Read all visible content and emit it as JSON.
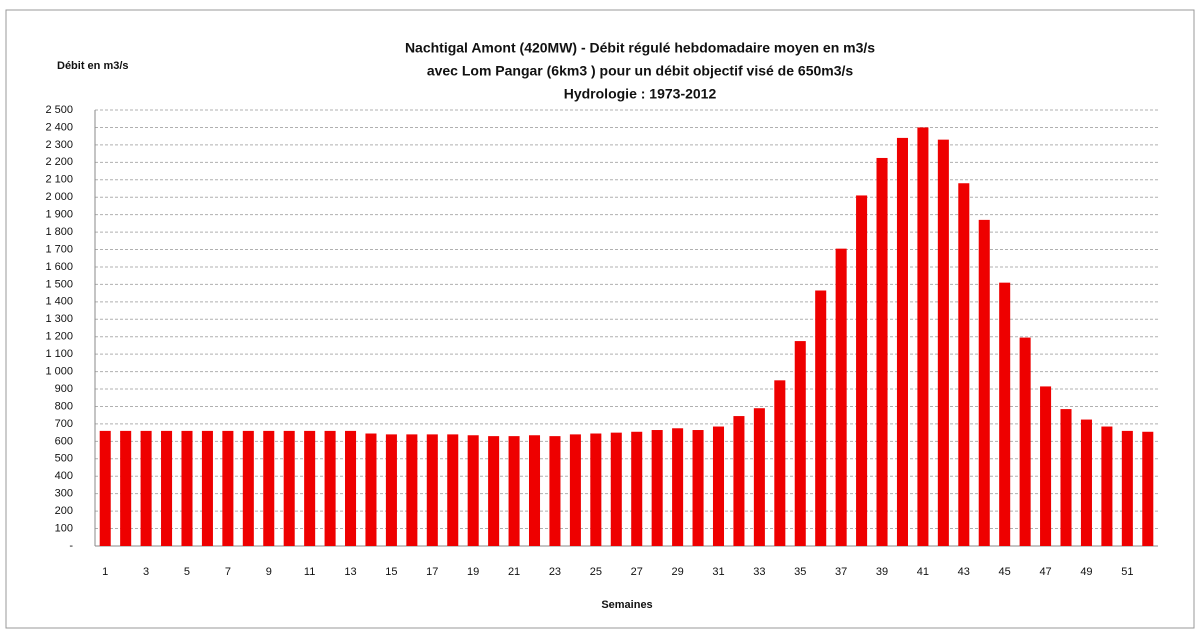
{
  "chart_data": {
    "type": "bar",
    "title": [
      "Nachtigal Amont (420MW) - Débit régulé hebdomadaire moyen en m3/s",
      "avec Lom Pangar (6km3 ) pour un débit objectif visé de 650m3/s",
      "Hydrologie : 1973-2012"
    ],
    "y_label": "Débit en m3/s",
    "x_label": "Semaines",
    "categories": [
      1,
      null,
      3,
      null,
      5,
      null,
      7,
      null,
      9,
      null,
      11,
      null,
      13,
      null,
      15,
      null,
      17,
      null,
      19,
      null,
      21,
      null,
      23,
      null,
      25,
      null,
      27,
      null,
      29,
      null,
      31,
      null,
      33,
      null,
      35,
      null,
      37,
      null,
      39,
      null,
      41,
      null,
      43,
      null,
      45,
      null,
      47,
      null,
      49,
      null,
      51,
      null
    ],
    "values": [
      660,
      660,
      660,
      660,
      660,
      660,
      660,
      660,
      660,
      660,
      660,
      660,
      660,
      645,
      640,
      640,
      640,
      640,
      635,
      630,
      630,
      635,
      630,
      640,
      645,
      650,
      655,
      665,
      675,
      665,
      685,
      745,
      790,
      950,
      1175,
      1465,
      1705,
      2010,
      2225,
      2340,
      2400,
      2330,
      2080,
      1870,
      1510,
      1195,
      915,
      785,
      725,
      685,
      660,
      655
    ],
    "color": "#ee0000",
    "ylim": [
      0,
      2500
    ],
    "yticks": [
      {
        "value": 0,
        "label": "-"
      },
      100,
      200,
      300,
      400,
      500,
      600,
      700,
      800,
      900,
      {
        "value": 1000,
        "label": "1 000"
      },
      {
        "value": 1100,
        "label": "1 100"
      },
      {
        "value": 1200,
        "label": "1 200"
      },
      {
        "value": 1300,
        "label": "1 300"
      },
      {
        "value": 1400,
        "label": "1 400"
      },
      {
        "value": 1500,
        "label": "1 500"
      },
      {
        "value": 1600,
        "label": "1 600"
      },
      {
        "value": 1700,
        "label": "1 700"
      },
      {
        "value": 1800,
        "label": "1 800"
      },
      {
        "value": 1900,
        "label": "1 900"
      },
      {
        "value": 2000,
        "label": "2 000"
      },
      {
        "value": 2100,
        "label": "2 100"
      },
      {
        "value": 2200,
        "label": "2 200"
      },
      {
        "value": 2300,
        "label": "2 300"
      },
      {
        "value": 2400,
        "label": "2 400"
      },
      {
        "value": 2500,
        "label": "2 500"
      }
    ],
    "grid": true
  }
}
